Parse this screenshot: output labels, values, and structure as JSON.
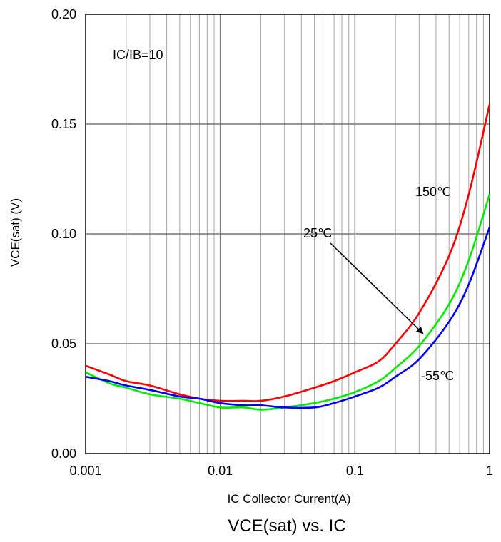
{
  "chart_data": {
    "type": "line",
    "title": "VCE(sat) vs. IC",
    "xlabel": "IC Collector Current(A)",
    "ylabel": "VCE(sat) (V)",
    "xscale": "log",
    "xlim": [
      0.001,
      1
    ],
    "ylim": [
      0,
      0.2
    ],
    "x_ticks": [
      {
        "value": 0.001,
        "label": "0.001"
      },
      {
        "value": 0.01,
        "label": "0.01"
      },
      {
        "value": 0.1,
        "label": "0.1"
      },
      {
        "value": 1,
        "label": "1"
      }
    ],
    "y_ticks": [
      {
        "value": 0,
        "label": "0.00"
      },
      {
        "value": 0.05,
        "label": "0.05"
      },
      {
        "value": 0.1,
        "label": "0.10"
      },
      {
        "value": 0.15,
        "label": "0.15"
      },
      {
        "value": 0.2,
        "label": "0.20"
      }
    ],
    "grid": true,
    "legend": "none",
    "annotations": [
      {
        "text": "IC/IB=10"
      },
      {
        "text": "150℃"
      },
      {
        "text": "25℃"
      },
      {
        "text": "-55℃"
      }
    ],
    "colors": {
      "150C": "#ff0000",
      "25C": "#00ee00",
      "m55C": "#0000ff",
      "grid": "#a6a6a6",
      "axis": "#000000"
    },
    "series": [
      {
        "key": "150C",
        "color": "#ff0000",
        "x": [
          0.001,
          0.0015,
          0.002,
          0.003,
          0.005,
          0.007,
          0.01,
          0.015,
          0.02,
          0.03,
          0.05,
          0.07,
          0.1,
          0.15,
          0.2,
          0.3,
          0.5,
          0.7,
          1
        ],
        "y": [
          0.04,
          0.036,
          0.033,
          0.031,
          0.027,
          0.025,
          0.024,
          0.024,
          0.024,
          0.026,
          0.03,
          0.033,
          0.037,
          0.042,
          0.05,
          0.064,
          0.09,
          0.118,
          0.159
        ]
      },
      {
        "key": "25C",
        "color": "#00ee00",
        "x": [
          0.001,
          0.0015,
          0.002,
          0.003,
          0.005,
          0.007,
          0.01,
          0.015,
          0.02,
          0.03,
          0.05,
          0.07,
          0.1,
          0.15,
          0.2,
          0.3,
          0.5,
          0.7,
          1
        ],
        "y": [
          0.037,
          0.032,
          0.03,
          0.027,
          0.025,
          0.023,
          0.021,
          0.021,
          0.02,
          0.021,
          0.023,
          0.025,
          0.028,
          0.033,
          0.039,
          0.049,
          0.068,
          0.088,
          0.118
        ]
      },
      {
        "key": "m55C",
        "color": "#0000ff",
        "x": [
          0.001,
          0.0015,
          0.002,
          0.003,
          0.005,
          0.007,
          0.01,
          0.015,
          0.02,
          0.03,
          0.05,
          0.07,
          0.1,
          0.15,
          0.2,
          0.3,
          0.5,
          0.7,
          1
        ],
        "y": [
          0.035,
          0.033,
          0.031,
          0.029,
          0.026,
          0.025,
          0.023,
          0.022,
          0.022,
          0.021,
          0.021,
          0.023,
          0.026,
          0.03,
          0.035,
          0.043,
          0.06,
          0.077,
          0.103
        ]
      }
    ]
  }
}
